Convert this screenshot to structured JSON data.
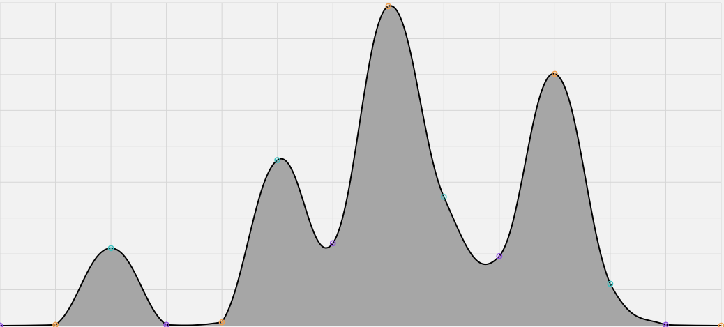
{
  "chart_data": {
    "type": "area",
    "title": "",
    "xlabel": "",
    "ylabel": "",
    "xlim": [
      0,
      13
    ],
    "ylim": [
      0,
      8.5
    ],
    "grid": true,
    "legend": "none",
    "fill_color": "#a6a6a6",
    "line_color": "#000000",
    "background": "#f2f2f2",
    "grid_color": "#d6d6d6",
    "marker_colors": {
      "orange": "#f0a050",
      "teal": "#40c0c0",
      "purple": "#9050e0"
    },
    "series": [
      {
        "x": [
          0,
          1,
          2,
          3,
          4,
          5,
          6,
          7,
          8,
          9,
          10,
          11,
          12,
          13
        ],
        "values": [
          0.0,
          0.02,
          2.04,
          0.02,
          0.09,
          4.36,
          2.17,
          8.41,
          3.39,
          1.83,
          6.63,
          1.1,
          0.02,
          0.0
        ],
        "marker_colors": [
          "purple",
          "orange",
          "teal",
          "purple",
          "orange",
          "teal",
          "purple",
          "orange",
          "teal",
          "purple",
          "orange",
          "teal",
          "purple",
          "orange"
        ]
      }
    ]
  }
}
